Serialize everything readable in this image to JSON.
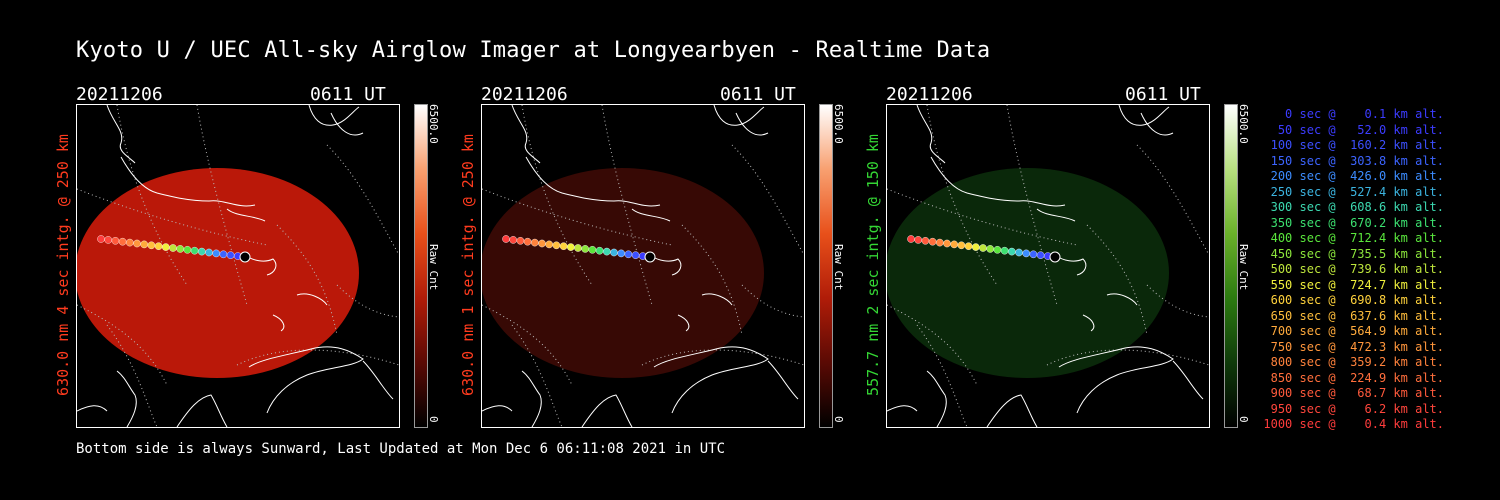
{
  "title": "Kyoto U / UEC All-sky Airglow Imager at Longyearbyen - Realtime Data",
  "panels": [
    {
      "date": "20211206",
      "time": "0611 UT",
      "side_label": "630.0 nm 4 sec intg. @ 250 km",
      "side_color": "#ff3b1e",
      "cbar_max": "6500.0",
      "cbar_min": "0",
      "cbar_label": "Raw Cnt",
      "image_color": "#c4190a",
      "image_opacity": 0.95,
      "cbar_theme": "red"
    },
    {
      "date": "20211206",
      "time": "0611 UT",
      "side_label": "630.0 nm 1 sec intg. @ 250 km",
      "side_color": "#ff3b1e",
      "cbar_max": "6500.0",
      "cbar_min": "0",
      "cbar_label": "Raw Cnt",
      "image_color": "#3a0905",
      "image_opacity": 0.95,
      "cbar_theme": "red"
    },
    {
      "date": "20211206",
      "time": "0611 UT",
      "side_label": "557.7 nm 2 sec intg. @ 150 km",
      "side_color": "#34d634",
      "cbar_max": "6500.0",
      "cbar_min": "0",
      "cbar_label": "Raw Cnt",
      "image_color": "#0b2a0b",
      "image_opacity": 0.95,
      "cbar_theme": "green"
    }
  ],
  "footer": "Bottom side is always Sunward, Last Updated at Mon Dec  6 06:11:08 2021 in UTC",
  "legend": [
    {
      "text": "   0 sec @    0.1 km alt.",
      "color": "#3c3cff"
    },
    {
      "text": "  50 sec @   52.0 km alt.",
      "color": "#3c3cff"
    },
    {
      "text": " 100 sec @  160.2 km alt.",
      "color": "#3c50ff"
    },
    {
      "text": " 150 sec @  303.8 km alt.",
      "color": "#3c64ff"
    },
    {
      "text": " 200 sec @  426.0 km alt.",
      "color": "#3c8cff"
    },
    {
      "text": " 250 sec @  527.4 km alt.",
      "color": "#3cb4e0"
    },
    {
      "text": " 300 sec @  608.6 km alt.",
      "color": "#3cd8b0"
    },
    {
      "text": " 350 sec @  670.2 km alt.",
      "color": "#3ce070"
    },
    {
      "text": " 400 sec @  712.4 km alt.",
      "color": "#5ae63c"
    },
    {
      "text": " 450 sec @  735.5 km alt.",
      "color": "#8ce63c"
    },
    {
      "text": " 500 sec @  739.6 km alt.",
      "color": "#bee63c"
    },
    {
      "text": " 550 sec @  724.7 km alt.",
      "color": "#f0f03c"
    },
    {
      "text": " 600 sec @  690.8 km alt.",
      "color": "#ffd23c"
    },
    {
      "text": " 650 sec @  637.6 km alt.",
      "color": "#ffbe3c"
    },
    {
      "text": " 700 sec @  564.9 km alt.",
      "color": "#ffaa3c"
    },
    {
      "text": " 750 sec @  472.3 km alt.",
      "color": "#ff963c"
    },
    {
      "text": " 800 sec @  359.2 km alt.",
      "color": "#ff823c"
    },
    {
      "text": " 850 sec @  224.9 km alt.",
      "color": "#ff6e3c"
    },
    {
      "text": " 900 sec @   68.7 km alt.",
      "color": "#ff5a3c"
    },
    {
      "text": " 950 sec @    6.2 km alt.",
      "color": "#ff463c"
    },
    {
      "text": "1000 sec @    0.4 km alt.",
      "color": "#ff3c3c"
    }
  ]
}
